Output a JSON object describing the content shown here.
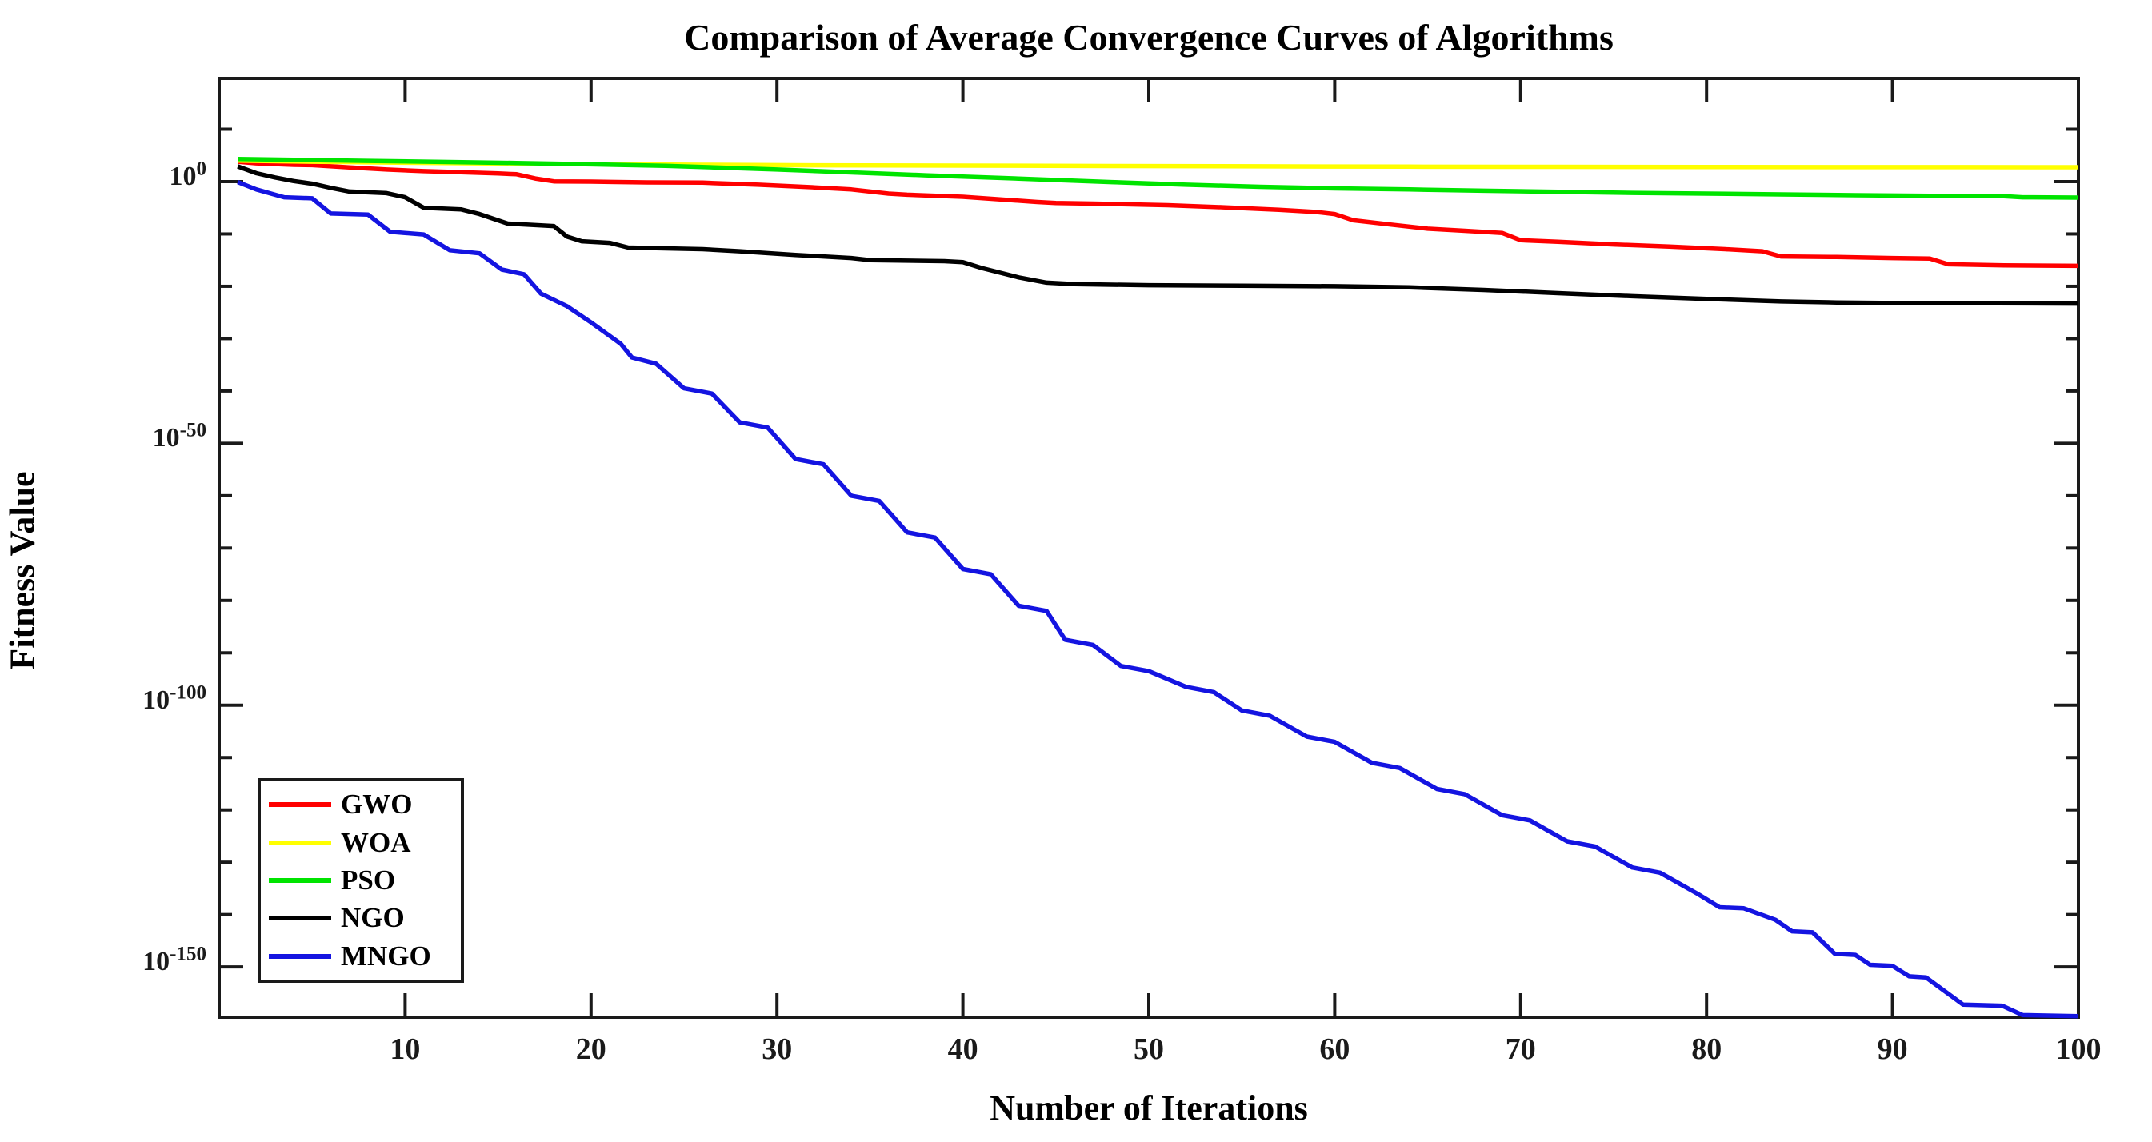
{
  "figure": {
    "title": "Comparison of Average Convergence Curves of Algorithms",
    "x_axis": {
      "label": "Number of Iterations",
      "range": [
        0,
        100
      ],
      "tick_values": [
        10,
        20,
        30,
        40,
        50,
        60,
        70,
        80,
        90,
        100
      ]
    },
    "y_axis": {
      "label": "Fitness Value",
      "scale": "log10",
      "range_exponents": [
        -159.6,
        19.7
      ],
      "major_tick_exponents": [
        0,
        -50,
        -100,
        -150
      ],
      "minor_tick_exponents": [
        10,
        -10,
        -20,
        -30,
        -40,
        -60,
        -70,
        -80,
        -90,
        -110,
        -120,
        -130,
        -140
      ]
    },
    "legend": {
      "position": "bottom-left",
      "entries": [
        "GWO",
        "WOA",
        "PSO",
        "NGO",
        "MNGO"
      ]
    },
    "colors": {
      "axis": "#1a1a1a",
      "gwo": "#ff0000",
      "woa": "#ffff00",
      "pso": "#00e400",
      "ngo": "#000000",
      "mngo": "#1414e1"
    }
  },
  "chart_data": {
    "type": "line",
    "x_unit": "iteration",
    "y_unit": "log10(fitness value)",
    "x_range": [
      0,
      100
    ],
    "y_exponent_range": [
      -159.6,
      19.7
    ],
    "series": [
      {
        "name": "GWO",
        "color": "#ff0000",
        "points": [
          [
            1,
            3.8
          ],
          [
            2,
            3.5
          ],
          [
            4,
            3.2
          ],
          [
            5,
            3.15
          ],
          [
            7,
            2.7
          ],
          [
            9,
            2.3
          ],
          [
            11,
            2.0
          ],
          [
            13,
            1.8
          ],
          [
            15,
            1.55
          ],
          [
            16,
            1.4
          ],
          [
            17,
            0.6
          ],
          [
            18,
            0.05
          ],
          [
            20,
            0.0
          ],
          [
            23,
            -0.15
          ],
          [
            26,
            -0.2
          ],
          [
            29,
            -0.6
          ],
          [
            32,
            -1.1
          ],
          [
            34,
            -1.5
          ],
          [
            36,
            -2.3
          ],
          [
            37,
            -2.5
          ],
          [
            40,
            -2.9
          ],
          [
            42,
            -3.4
          ],
          [
            44,
            -3.9
          ],
          [
            45,
            -4.1
          ],
          [
            47,
            -4.2
          ],
          [
            51,
            -4.5
          ],
          [
            54,
            -4.9
          ],
          [
            57,
            -5.4
          ],
          [
            59,
            -5.8
          ],
          [
            60,
            -6.2
          ],
          [
            61,
            -7.4
          ],
          [
            63,
            -8.2
          ],
          [
            65,
            -9.0
          ],
          [
            67,
            -9.4
          ],
          [
            69,
            -9.8
          ],
          [
            70,
            -11.2
          ],
          [
            72,
            -11.5
          ],
          [
            75,
            -12.0
          ],
          [
            78,
            -12.4
          ],
          [
            81,
            -12.9
          ],
          [
            83,
            -13.3
          ],
          [
            84,
            -14.3
          ],
          [
            87,
            -14.4
          ],
          [
            90,
            -14.6
          ],
          [
            92,
            -14.7
          ],
          [
            93,
            -15.8
          ],
          [
            96,
            -16.0
          ],
          [
            100,
            -16.1
          ]
        ]
      },
      {
        "name": "WOA",
        "color": "#ffff00",
        "points": [
          [
            1,
            4.0
          ],
          [
            5,
            3.8
          ],
          [
            10,
            3.6
          ],
          [
            15,
            3.45
          ],
          [
            20,
            3.35
          ],
          [
            26,
            3.2
          ],
          [
            32,
            3.12
          ],
          [
            40,
            3.05
          ],
          [
            48,
            2.98
          ],
          [
            56,
            2.92
          ],
          [
            64,
            2.86
          ],
          [
            72,
            2.82
          ],
          [
            80,
            2.79
          ],
          [
            88,
            2.77
          ],
          [
            94,
            2.76
          ],
          [
            100,
            2.75
          ]
        ]
      },
      {
        "name": "PSO",
        "color": "#00e400",
        "points": [
          [
            1,
            4.3
          ],
          [
            4,
            4.15
          ],
          [
            8,
            3.95
          ],
          [
            12,
            3.75
          ],
          [
            16,
            3.55
          ],
          [
            20,
            3.3
          ],
          [
            24,
            3.0
          ],
          [
            26,
            2.8
          ],
          [
            30,
            2.3
          ],
          [
            34,
            1.75
          ],
          [
            38,
            1.2
          ],
          [
            42,
            0.7
          ],
          [
            45,
            0.3
          ],
          [
            48,
            -0.1
          ],
          [
            52,
            -0.6
          ],
          [
            56,
            -1.0
          ],
          [
            60,
            -1.3
          ],
          [
            64,
            -1.5
          ],
          [
            68,
            -1.75
          ],
          [
            72,
            -1.95
          ],
          [
            76,
            -2.15
          ],
          [
            80,
            -2.3
          ],
          [
            84,
            -2.45
          ],
          [
            88,
            -2.6
          ],
          [
            92,
            -2.7
          ],
          [
            96,
            -2.78
          ],
          [
            97,
            -3.0
          ],
          [
            100,
            -3.05
          ]
        ]
      },
      {
        "name": "NGO",
        "color": "#000000",
        "points": [
          [
            1,
            2.9
          ],
          [
            2,
            1.6
          ],
          [
            3,
            0.8
          ],
          [
            4,
            0.1
          ],
          [
            5,
            -0.4
          ],
          [
            6,
            -1.2
          ],
          [
            7,
            -1.9
          ],
          [
            9,
            -2.2
          ],
          [
            10,
            -3.0
          ],
          [
            11,
            -5.0
          ],
          [
            13,
            -5.3
          ],
          [
            14,
            -6.2
          ],
          [
            15.5,
            -8.0
          ],
          [
            18,
            -8.5
          ],
          [
            18.7,
            -10.5
          ],
          [
            19.5,
            -11.4
          ],
          [
            21,
            -11.7
          ],
          [
            22,
            -12.6
          ],
          [
            26,
            -12.9
          ],
          [
            28,
            -13.3
          ],
          [
            31,
            -14.0
          ],
          [
            34,
            -14.6
          ],
          [
            35,
            -15.0
          ],
          [
            39,
            -15.2
          ],
          [
            40,
            -15.4
          ],
          [
            41,
            -16.5
          ],
          [
            43,
            -18.3
          ],
          [
            44.5,
            -19.3
          ],
          [
            46,
            -19.6
          ],
          [
            50,
            -19.8
          ],
          [
            55,
            -19.9
          ],
          [
            60,
            -20.0
          ],
          [
            64,
            -20.2
          ],
          [
            68,
            -20.7
          ],
          [
            72,
            -21.3
          ],
          [
            76,
            -21.9
          ],
          [
            80,
            -22.4
          ],
          [
            84,
            -22.9
          ],
          [
            87,
            -23.1
          ],
          [
            90,
            -23.2
          ],
          [
            100,
            -23.3
          ]
        ]
      },
      {
        "name": "MNGO",
        "color": "#1414e1",
        "points": [
          [
            1,
            -0.1
          ],
          [
            2,
            -1.5
          ],
          [
            3.5,
            -3.0
          ],
          [
            5,
            -3.2
          ],
          [
            6,
            -6.1
          ],
          [
            8,
            -6.3
          ],
          [
            9.2,
            -9.6
          ],
          [
            11,
            -10.1
          ],
          [
            12.4,
            -13.1
          ],
          [
            14,
            -13.7
          ],
          [
            15.2,
            -16.8
          ],
          [
            16.4,
            -17.7
          ],
          [
            17.3,
            -21.4
          ],
          [
            18.7,
            -23.8
          ],
          [
            20,
            -26.9
          ],
          [
            21.6,
            -31.0
          ],
          [
            22.2,
            -33.6
          ],
          [
            23.5,
            -34.8
          ],
          [
            25,
            -39.5
          ],
          [
            26.5,
            -40.5
          ],
          [
            28,
            -46
          ],
          [
            29.5,
            -47
          ],
          [
            31,
            -53
          ],
          [
            32.5,
            -54
          ],
          [
            34,
            -60
          ],
          [
            35.5,
            -61
          ],
          [
            37,
            -67
          ],
          [
            38.5,
            -68
          ],
          [
            40,
            -74
          ],
          [
            41.5,
            -75
          ],
          [
            43,
            -81
          ],
          [
            44.5,
            -82
          ],
          [
            45.5,
            -87.5
          ],
          [
            47,
            -88.5
          ],
          [
            48.5,
            -92.5
          ],
          [
            50,
            -93.5
          ],
          [
            52,
            -96.5
          ],
          [
            53.5,
            -97.5
          ],
          [
            55,
            -101
          ],
          [
            56.5,
            -102
          ],
          [
            58.5,
            -106
          ],
          [
            60,
            -107
          ],
          [
            62,
            -111
          ],
          [
            63.5,
            -112
          ],
          [
            65.5,
            -116
          ],
          [
            67,
            -117
          ],
          [
            69,
            -121
          ],
          [
            70.5,
            -122
          ],
          [
            72.5,
            -126
          ],
          [
            74,
            -127
          ],
          [
            76,
            -131
          ],
          [
            77.5,
            -132
          ],
          [
            79.5,
            -136
          ],
          [
            80.7,
            -138.6
          ],
          [
            82,
            -138.8
          ],
          [
            83.7,
            -141
          ],
          [
            84.6,
            -143.2
          ],
          [
            85.7,
            -143.4
          ],
          [
            86.9,
            -147.5
          ],
          [
            88,
            -147.7
          ],
          [
            88.8,
            -149.6
          ],
          [
            90,
            -149.8
          ],
          [
            90.9,
            -151.8
          ],
          [
            91.8,
            -152
          ],
          [
            93.8,
            -157.2
          ],
          [
            95.9,
            -157.4
          ],
          [
            97,
            -159.2
          ],
          [
            100,
            -159.4
          ]
        ]
      }
    ]
  }
}
